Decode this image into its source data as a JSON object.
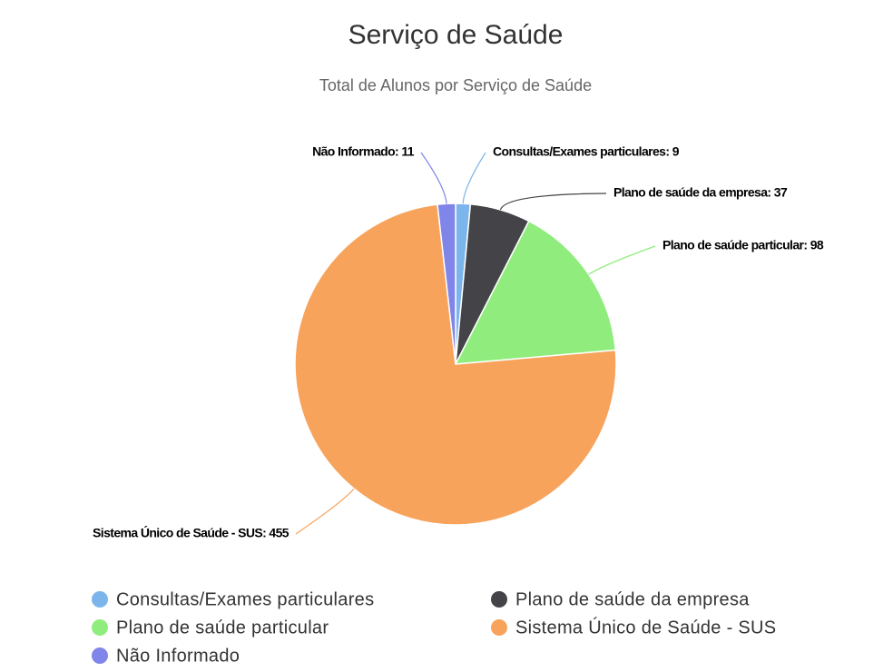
{
  "chart_data": {
    "type": "pie",
    "title": "Serviço de Saúde",
    "subtitle": "Total de Alunos por Serviço de Saúde",
    "categories": [
      "Consultas/Exames particulares",
      "Plano de saúde da empresa",
      "Plano de saúde particular",
      "Sistema Único de Saúde - SUS",
      "Não Informado"
    ],
    "values": [
      9,
      37,
      98,
      455,
      11
    ],
    "value_labels": [
      "Consultas/Exames particulares: 9",
      "Plano de saúde da empresa: 37",
      "Plano de saúde particular: 98",
      "Sistema Único de Saúde - SUS: 455",
      "Não Informado: 11"
    ],
    "colors": [
      "#7cb5ec",
      "#434348",
      "#90ed7d",
      "#f7a35c",
      "#8085e9"
    ]
  }
}
